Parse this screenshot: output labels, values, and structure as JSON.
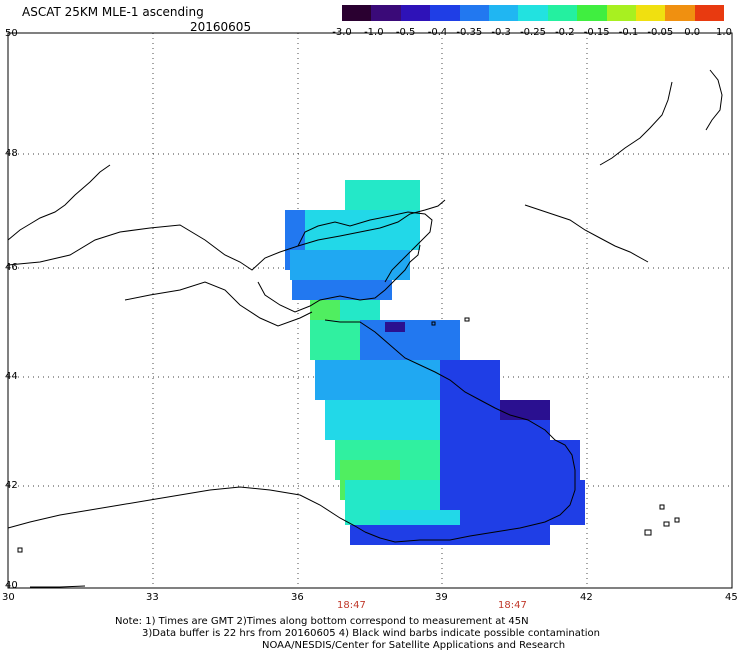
{
  "header": {
    "title": "ASCAT 25KM MLE-1 ascending",
    "date": "20160605"
  },
  "legend": {
    "labels": [
      "-3.0",
      "-1.0",
      "-0.5",
      "-0.4",
      "-0.35",
      "-0.3",
      "-0.25",
      "-0.2",
      "-0.15",
      "-0.1",
      "-0.05",
      "0.0",
      "1.0"
    ],
    "colors": [
      "#2a0030",
      "#3a0a78",
      "#2e12b8",
      "#1f3ee6",
      "#2278f0",
      "#20b6f2",
      "#22e2e0",
      "#24f0a0",
      "#40ee40",
      "#a8f020",
      "#f0e010",
      "#f09010",
      "#e83a10"
    ]
  },
  "axes": {
    "lat_labels": [
      "50",
      "48",
      "46",
      "44",
      "42",
      "40"
    ],
    "lon_labels": [
      "30",
      "33",
      "36",
      "39",
      "42",
      "45"
    ]
  },
  "times": [
    "18:47",
    "18:47"
  ],
  "footnote": {
    "line1": "Note: 1) Times are GMT 2)Times along bottom correspond to measurement at 45N",
    "line2": "3)Data buffer is 22 hrs from 20160605 4) Black wind barbs indicate possible contamination",
    "line3": "NOAA/NESDIS/Center for Satellite Applications and Research"
  }
}
